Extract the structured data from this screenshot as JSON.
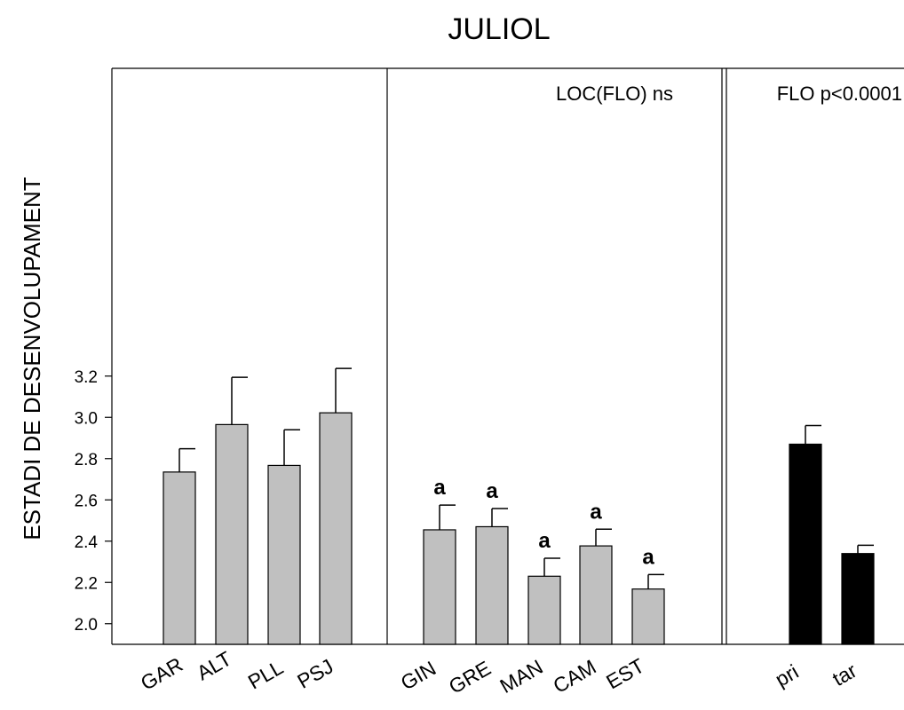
{
  "chart_data": {
    "type": "bar",
    "title": "JULIOL",
    "ylabel": "ESTADI DE DESENVOLUPAMENT",
    "ylim": [
      1.9,
      3.3
    ],
    "yticks": [
      "2.0",
      "2.2",
      "2.4",
      "2.6",
      "2.8",
      "3.0",
      "3.2"
    ],
    "grid": false,
    "colors": {
      "gray_bar": "#c0c0c0",
      "black_bar": "#000000"
    },
    "panels": [
      {
        "annotation": "",
        "categories": [
          "GAR",
          "ALT",
          "PLL",
          "PSJ"
        ],
        "values": [
          2.735,
          2.965,
          2.767,
          3.022
        ],
        "errors": [
          0.113,
          0.229,
          0.173,
          0.215
        ],
        "letters": [
          "",
          "",
          "",
          ""
        ]
      },
      {
        "annotation": "LOC(FLO) ns",
        "categories": [
          "GIN",
          "GRE",
          "MAN",
          "CAM",
          "EST"
        ],
        "values": [
          2.455,
          2.47,
          2.23,
          2.377,
          2.168
        ],
        "errors": [
          0.12,
          0.088,
          0.087,
          0.081,
          0.07
        ],
        "letters": [
          "a",
          "a",
          "a",
          "a",
          "a"
        ]
      },
      {
        "annotation": "FLO p<0.0001",
        "categories": [
          "pri",
          "tar"
        ],
        "values": [
          2.87,
          2.34
        ],
        "errors": [
          0.09,
          0.04
        ],
        "letters": [
          "",
          ""
        ]
      }
    ]
  }
}
